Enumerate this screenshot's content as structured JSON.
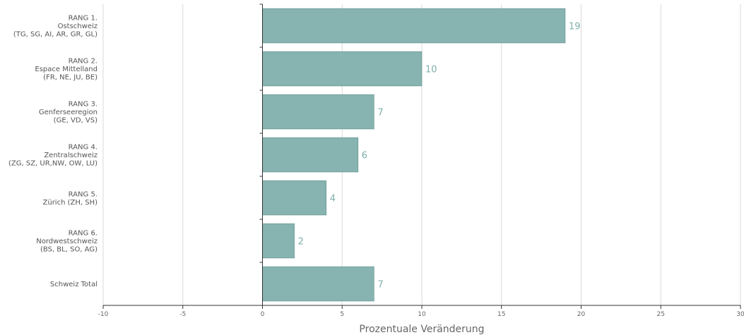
{
  "chart_data": {
    "type": "bar",
    "orientation": "horizontal",
    "categories": [
      [
        "RANG 1.",
        "Ostschweiz",
        "(TG, SG, AI, AR, GR, GL)"
      ],
      [
        "RANG 2.",
        "Espace Mittelland",
        "(FR, NE, JU, BE)"
      ],
      [
        "RANG 3.",
        "Genferseeregion",
        "(GE, VD, VS)"
      ],
      [
        "RANG 4.",
        "Zentralschweiz",
        "(ZG, SZ, UR,NW, OW, LU)"
      ],
      [
        "RANG 5.",
        "Zürich (ZH, SH)"
      ],
      [
        "RANG 6.",
        "Nordwestschweiz",
        "(BS, BL, SO, AG)"
      ],
      [
        "Schweiz Total"
      ]
    ],
    "values": [
      19,
      10,
      7,
      6,
      4,
      2,
      7
    ],
    "data_labels": [
      "19",
      "10",
      "7",
      "6",
      "4",
      "2",
      "7"
    ],
    "xlabel": "Prozentuale Veränderung",
    "xlim": [
      -10,
      30
    ],
    "xticks": [
      -10,
      -5,
      0,
      5,
      10,
      15,
      20,
      25,
      30
    ],
    "xtick_labels": [
      "-10",
      "-5",
      "0",
      "5",
      "10",
      "15",
      "20",
      "25",
      "30"
    ],
    "grid": "vertical",
    "legend": "none",
    "colors": {
      "bar": "#87b3b0",
      "bar_stroke": "#5e8f8b",
      "data_label": "#7fb0ac",
      "grid": "#d9d9d9",
      "axis": "#333333",
      "text": "#555555"
    }
  }
}
